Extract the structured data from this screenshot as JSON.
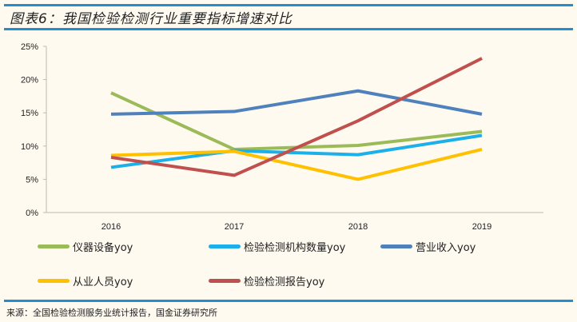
{
  "title": "图表6：我国检验检测行业重要指标增速对比",
  "source": "来源：全国检验检测服务业统计报告，国金证券研究所",
  "chart_data": {
    "type": "line",
    "title": "图表6：我国检验检测行业重要指标增速对比",
    "categories": [
      "2016",
      "2017",
      "2018",
      "2019"
    ],
    "ylim": [
      0,
      25
    ],
    "yticks": [
      "0%",
      "5%",
      "10%",
      "15%",
      "20%",
      "25%"
    ],
    "ytick_values": [
      0,
      5,
      10,
      15,
      20,
      25
    ],
    "grid": false,
    "legend_position": "bottom",
    "series": [
      {
        "name": "仪器设备yoy",
        "color": "#9bbb59",
        "values": [
          18.0,
          9.5,
          10.1,
          12.2
        ]
      },
      {
        "name": "检验检测机构数量yoy",
        "color": "#1cb0ea",
        "values": [
          6.8,
          9.3,
          8.7,
          11.6
        ]
      },
      {
        "name": "营业收入yoy",
        "color": "#4f81bd",
        "values": [
          14.8,
          15.2,
          18.3,
          14.8
        ]
      },
      {
        "name": "从业人员yoy",
        "color": "#ffc000",
        "values": [
          8.6,
          9.2,
          5.0,
          9.5
        ]
      },
      {
        "name": "检验检测报告yoy",
        "color": "#c0504d",
        "values": [
          8.3,
          5.6,
          13.8,
          23.2
        ]
      }
    ]
  }
}
